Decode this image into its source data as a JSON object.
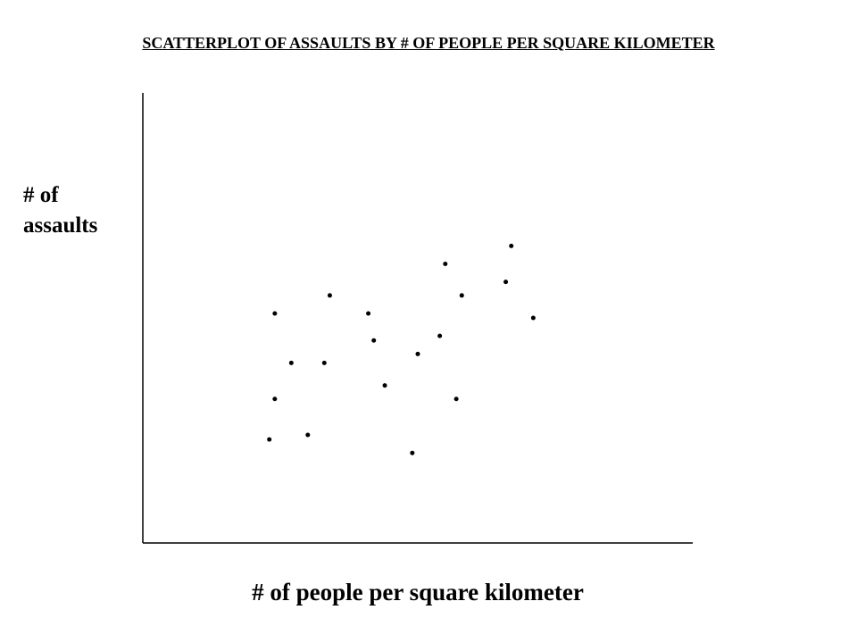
{
  "chart_data": {
    "type": "scatter",
    "title": "SCATTERPLOT OF ASSAULTS BY # OF PEOPLE PER SQUARE KILOMETER",
    "x_label": "# of people per square kilometer",
    "y_label": "# of assaults",
    "x": [
      24,
      34,
      41,
      42,
      27,
      33,
      24,
      44,
      50,
      54,
      55,
      58,
      66,
      67,
      71,
      57,
      23,
      30,
      49
    ],
    "values": [
      51,
      55,
      51,
      45,
      40,
      40,
      32,
      35,
      42,
      46,
      62,
      55,
      58,
      66,
      50,
      32,
      23,
      24,
      20
    ],
    "color": "#000000",
    "xlim": [
      0,
      100
    ],
    "ylim": [
      0,
      100
    ]
  }
}
